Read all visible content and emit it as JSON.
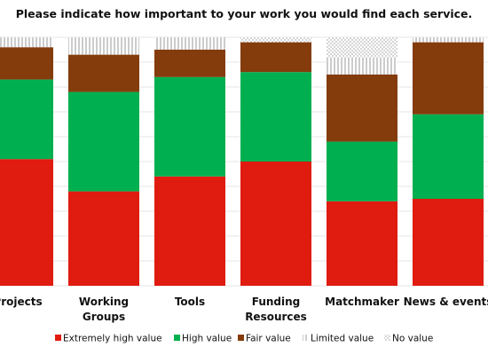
{
  "chart_data": {
    "type": "bar",
    "stacked": true,
    "percent": true,
    "title": "Please indicate how important to your work you would find each service.",
    "categories": [
      "Projects",
      "Working Groups",
      "Tools",
      "Funding Resources",
      "Matchmaker",
      "News & events"
    ],
    "series": [
      {
        "name": "Extremely high value",
        "color": "#e01b10",
        "pattern": "solid",
        "values": [
          51,
          38,
          44,
          50,
          34,
          35
        ]
      },
      {
        "name": "High value",
        "color": "#00b050",
        "pattern": "solid",
        "values": [
          32,
          40,
          40,
          36,
          24,
          34
        ]
      },
      {
        "name": "Fair value",
        "color": "#843c0c",
        "pattern": "solid",
        "values": [
          13,
          15,
          11,
          12,
          27,
          29
        ]
      },
      {
        "name": "Limited value",
        "color": "#7f7f7f",
        "pattern": "vertical-lines",
        "values": [
          4,
          7,
          5,
          0,
          7,
          2
        ]
      },
      {
        "name": "No value",
        "color": "#7f7f7f",
        "pattern": "dots",
        "values": [
          0,
          0,
          0,
          2,
          8,
          0
        ]
      }
    ],
    "ylim": [
      0,
      100
    ],
    "grid": true,
    "legend": "bottom"
  }
}
